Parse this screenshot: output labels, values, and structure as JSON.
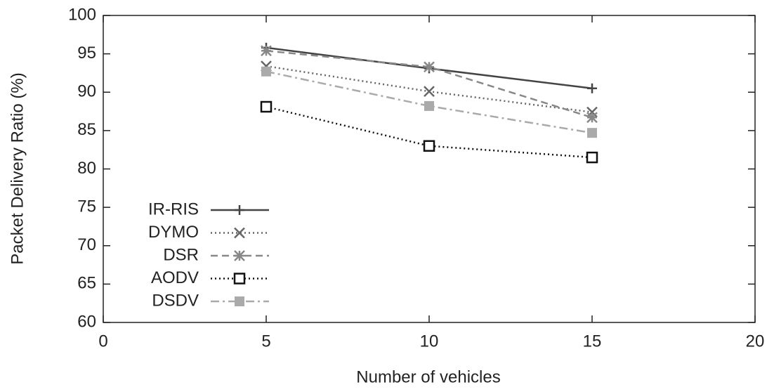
{
  "chart_data": {
    "type": "line",
    "x_label": "Number of vehicles",
    "y_label": "Packet Delivery Ratio (%)",
    "x": [
      5,
      10,
      15
    ],
    "series": [
      {
        "name": "IR-RIS",
        "color": "#444444",
        "dash": "solid",
        "marker": "plus",
        "values": [
          95.8,
          93.1,
          90.5
        ]
      },
      {
        "name": "DYMO",
        "color": "#666666",
        "dash": "dotted",
        "marker": "cross",
        "values": [
          93.4,
          90.1,
          87.4
        ]
      },
      {
        "name": "DSR",
        "color": "#888888",
        "dash": "dashed",
        "marker": "star",
        "values": [
          95.4,
          93.3,
          86.7
        ]
      },
      {
        "name": "AODV",
        "color": "#111111",
        "dash": "dotted",
        "marker": "open-square",
        "values": [
          88.1,
          83.0,
          81.5
        ]
      },
      {
        "name": "DSDV",
        "color": "#aaaaaa",
        "dash": "dashdot",
        "marker": "filled-square",
        "values": [
          92.7,
          88.2,
          84.7
        ]
      }
    ],
    "xlim": [
      0,
      20
    ],
    "xticks": [
      0,
      5,
      10,
      15,
      20
    ],
    "ylim": [
      60,
      100
    ],
    "yticks": [
      60,
      65,
      70,
      75,
      80,
      85,
      90,
      95,
      100
    ],
    "legend": "lower left"
  }
}
